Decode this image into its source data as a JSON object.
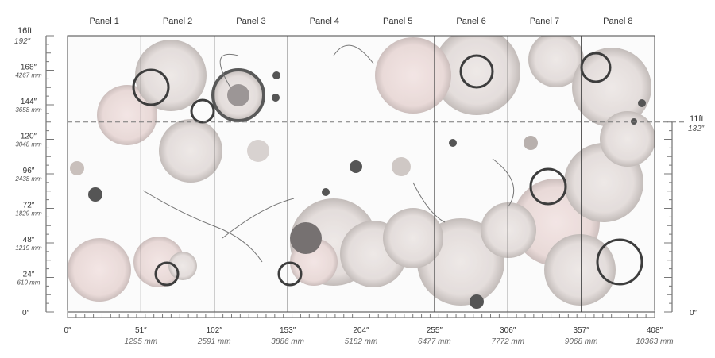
{
  "panels": [
    "Panel 1",
    "Panel 2",
    "Panel 3",
    "Panel 4",
    "Panel 5",
    "Panel 6",
    "Panel 7",
    "Panel 8"
  ],
  "left_axis": {
    "top_ft": "16ft",
    "top_in": "192″",
    "zero": "0″",
    "ticks": [
      {
        "value": 168,
        "label": "168″",
        "mm": "4267 mm"
      },
      {
        "value": 144,
        "label": "144″",
        "mm": "3658 mm"
      },
      {
        "value": 120,
        "label": "120″",
        "mm": "3048 mm"
      },
      {
        "value": 96,
        "label": "96″",
        "mm": "2438 mm"
      },
      {
        "value": 72,
        "label": "72″",
        "mm": "1829 mm"
      },
      {
        "value": 48,
        "label": "48″",
        "mm": "1219 mm"
      },
      {
        "value": 24,
        "label": "24″",
        "mm": "610 mm"
      }
    ]
  },
  "right_axis": {
    "ft": "11ft",
    "inches": "132″",
    "zero": "0″",
    "cut_value": 132
  },
  "bottom_axis": {
    "zero": "0″",
    "ticks": [
      {
        "value": 51,
        "label": "51″",
        "mm": "1295 mm"
      },
      {
        "value": 102,
        "label": "102″",
        "mm": "2591 mm"
      },
      {
        "value": 153,
        "label": "153″",
        "mm": "3886 mm"
      },
      {
        "value": 204,
        "label": "204″",
        "mm": "5182 mm"
      },
      {
        "value": 255,
        "label": "255″",
        "mm": "6477 mm"
      },
      {
        "value": 306,
        "label": "306″",
        "mm": "7772 mm"
      },
      {
        "value": 357,
        "label": "357″",
        "mm": "9068 mm"
      },
      {
        "value": 408,
        "label": "408″",
        "mm": "10363 mm"
      }
    ]
  },
  "colors": {
    "panel_line": "#444444",
    "cut_line": "#777777",
    "bubble_fill": "#ddd6d3",
    "bubble_dark": "#3a3a3a",
    "blush": "#e8d6d4"
  }
}
